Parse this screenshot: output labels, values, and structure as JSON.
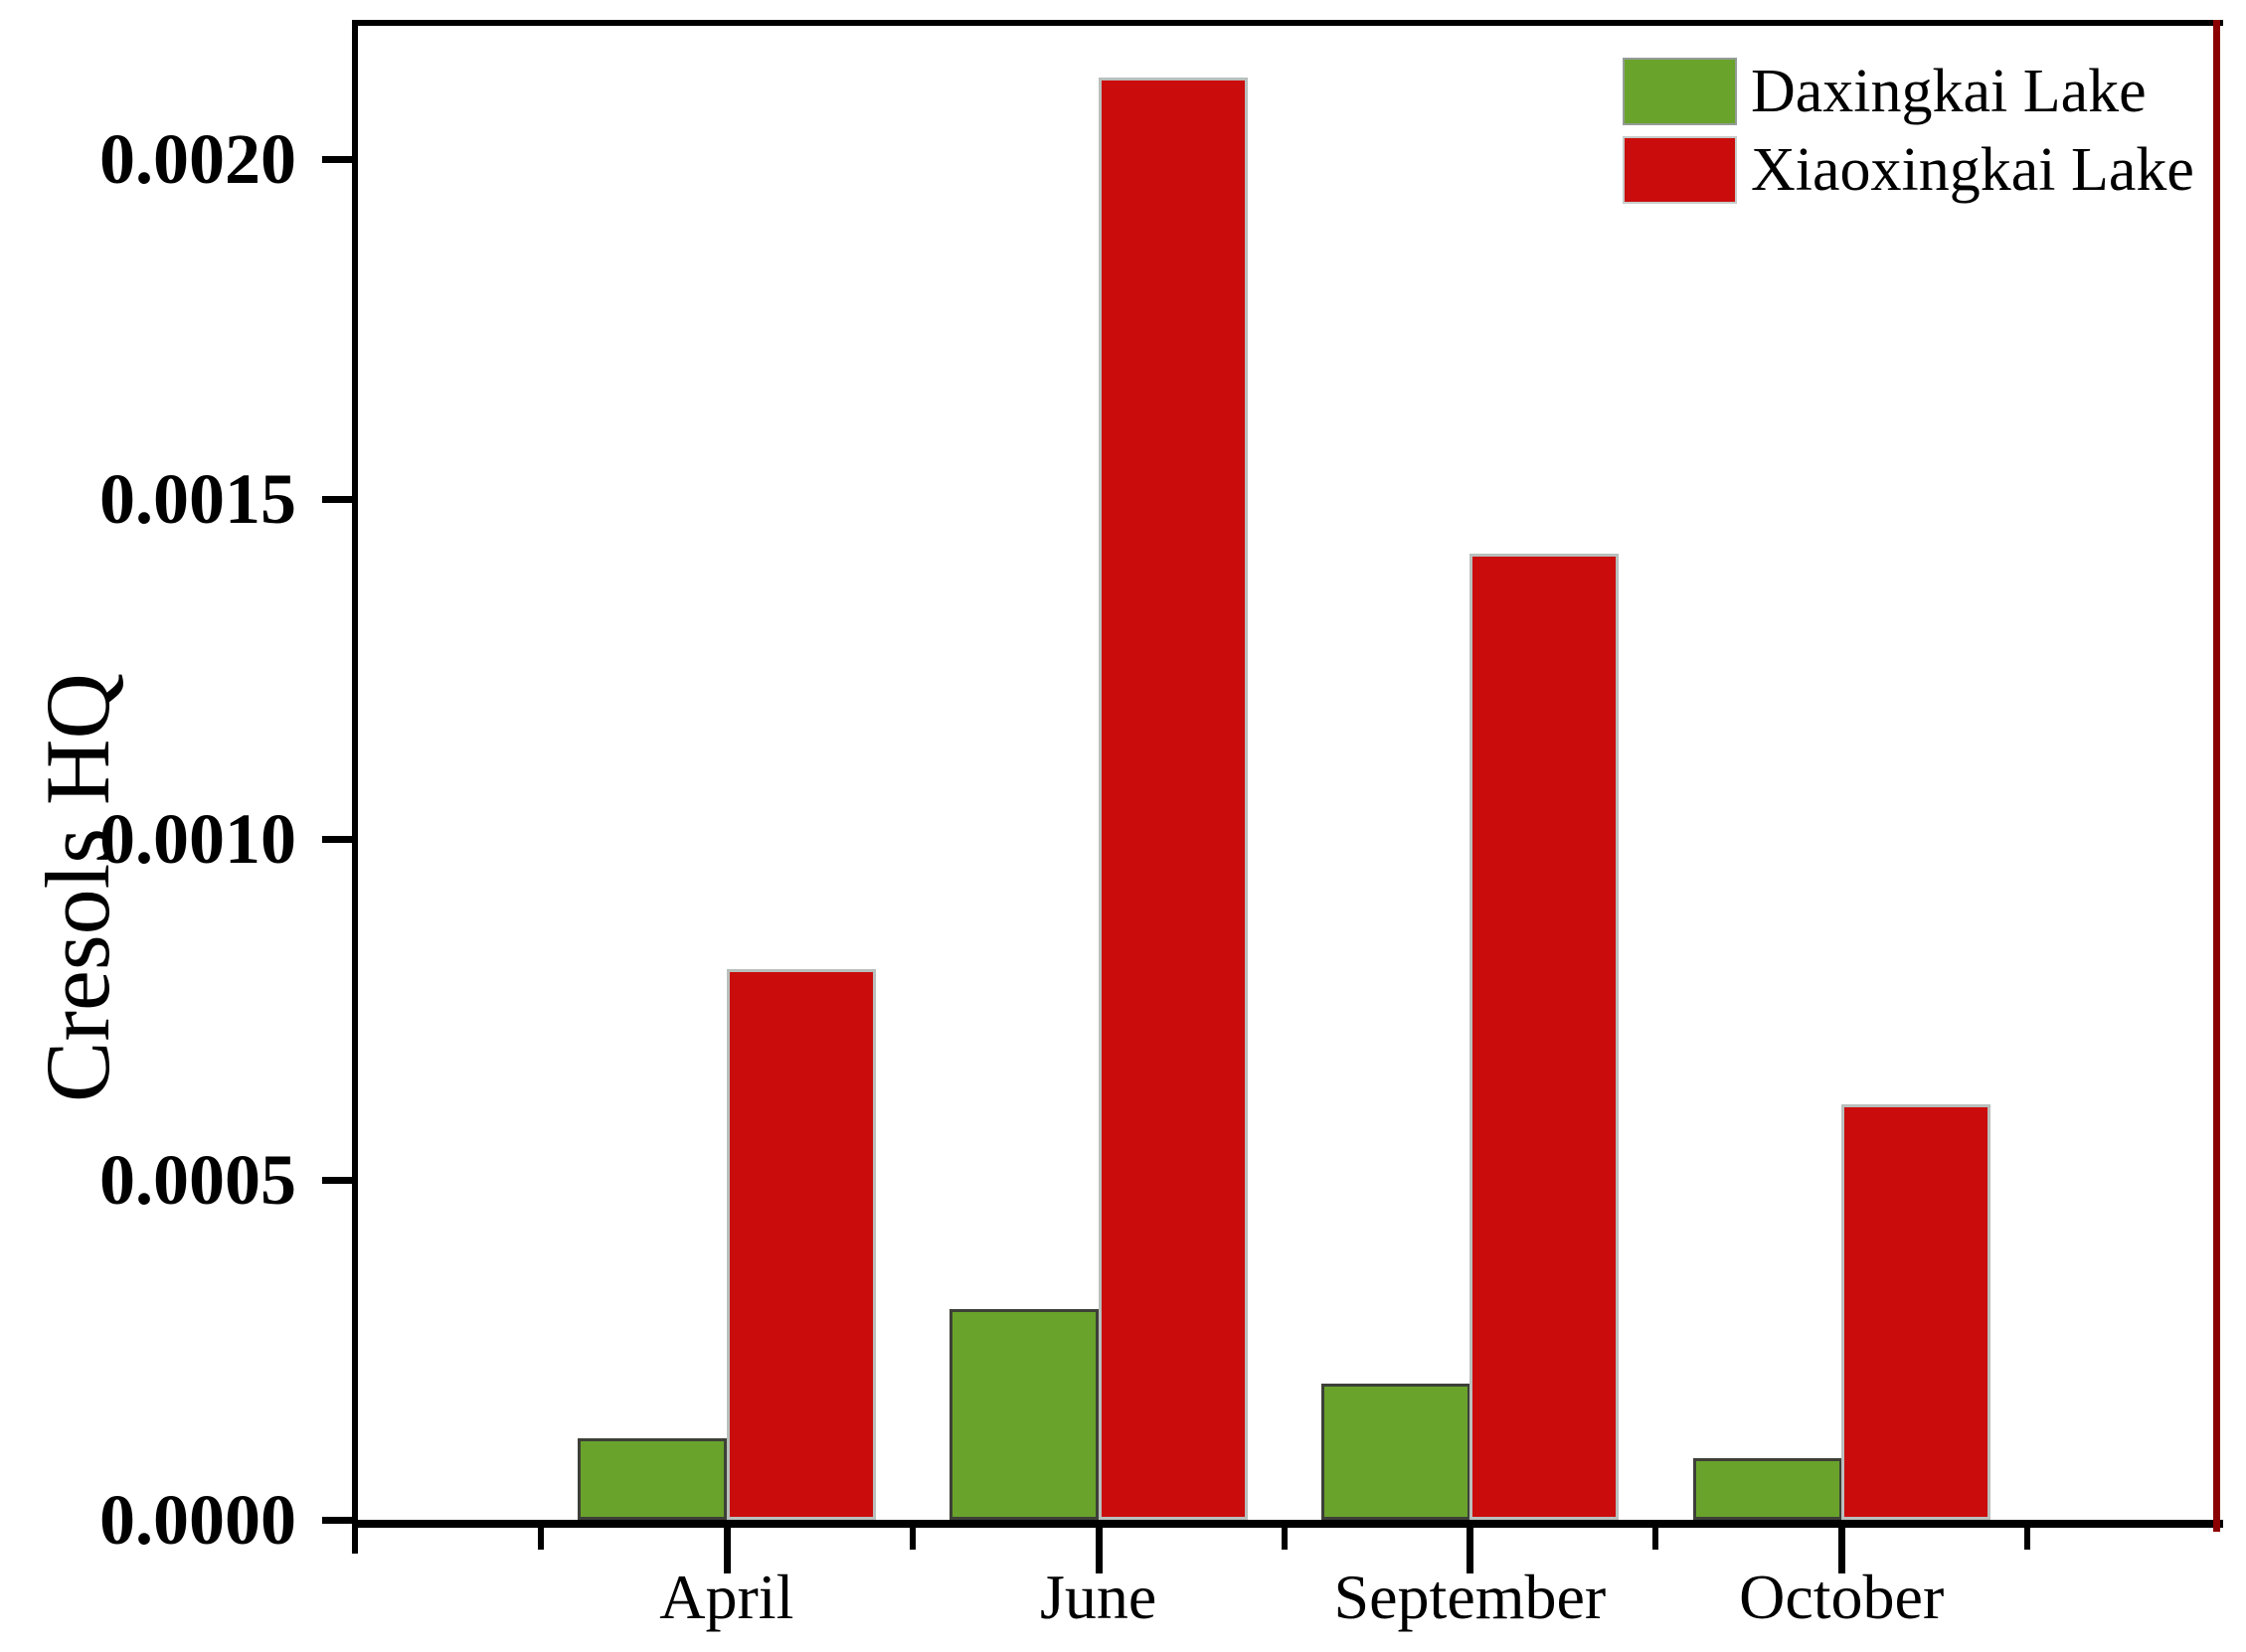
{
  "chart_data": {
    "type": "bar",
    "title": "",
    "xlabel": "",
    "ylabel": "Cresols HQ",
    "categories": [
      "April",
      "June",
      "September",
      "October"
    ],
    "series": [
      {
        "name": "Daxingkai Lake",
        "color": "#69A32B",
        "values": [
          0.00012,
          0.00031,
          0.0002,
          9e-05
        ]
      },
      {
        "name": "Xiaoxingkai Lake",
        "color": "#CB0C0C",
        "values": [
          0.00081,
          0.00212,
          0.00142,
          0.00061
        ]
      }
    ],
    "ylim": [
      0,
      0.0022
    ],
    "ytick_labels": [
      "0.0000",
      "0.0005",
      "0.0010",
      "0.0015",
      "0.0020"
    ],
    "grid": false,
    "legend_position": "top-right",
    "colors": {
      "axis": "#000000",
      "right_axis": "#8B0000",
      "green_bar_border": "#3d4038",
      "red_bar_border": "#b9bfbc",
      "background": "#ffffff"
    }
  }
}
